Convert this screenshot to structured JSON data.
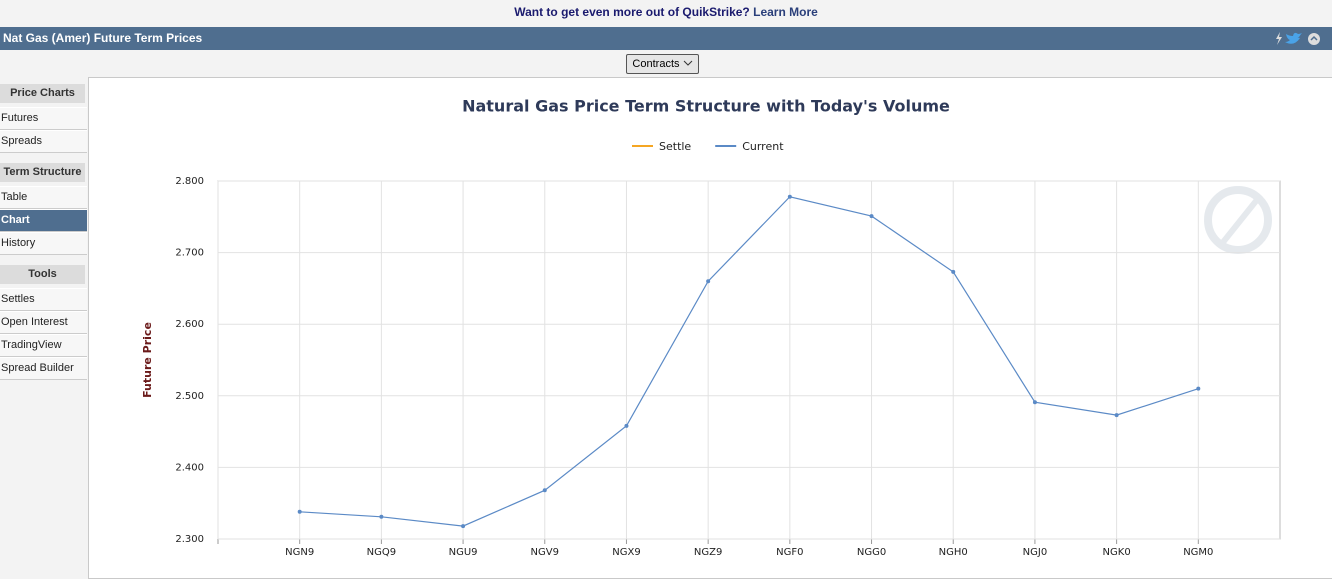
{
  "banner": {
    "text": "Want to get even more out of QuikStrike?",
    "link": "Learn More"
  },
  "header": {
    "title": "Nat Gas (Amer) Future Term Prices"
  },
  "toolbar": {
    "button": "Contracts"
  },
  "sidebar": [
    {
      "title": "Price Charts",
      "items": [
        {
          "label": "Futures"
        },
        {
          "label": "Spreads"
        }
      ]
    },
    {
      "title": "Term Structure",
      "items": [
        {
          "label": "Table"
        },
        {
          "label": "Chart",
          "active": true
        },
        {
          "label": "History"
        }
      ]
    },
    {
      "title": "Tools",
      "items": [
        {
          "label": "Settles"
        },
        {
          "label": "Open Interest"
        },
        {
          "label": "TradingView"
        },
        {
          "label": "Spread Builder"
        }
      ]
    }
  ],
  "chart_data": {
    "type": "line",
    "title": "Natural Gas Price Term Structure with Today's Volume",
    "y_label": "Future Price",
    "categories": [
      "NGN9",
      "NGQ9",
      "NGU9",
      "NGV9",
      "NGX9",
      "NGZ9",
      "NGF0",
      "NGG0",
      "NGH0",
      "NGJ0",
      "NGK0",
      "NGM0"
    ],
    "series": [
      {
        "name": "Settle",
        "color": "#f5a623",
        "values": [
          null,
          null,
          null,
          null,
          null,
          null,
          null,
          null,
          null,
          null,
          null,
          null
        ]
      },
      {
        "name": "Current",
        "color": "#5b8ac6",
        "values": [
          2.338,
          2.331,
          2.318,
          2.368,
          2.458,
          2.66,
          2.778,
          2.751,
          2.673,
          2.491,
          2.473,
          2.51
        ]
      }
    ],
    "ylim": [
      2.3,
      2.8
    ],
    "yticks": [
      {
        "value": 2.3,
        "label": "2.300"
      },
      {
        "value": 2.4,
        "label": "2.400"
      },
      {
        "value": 2.5,
        "label": "2.500"
      },
      {
        "value": 2.6,
        "label": "2.600"
      },
      {
        "value": 2.7,
        "label": "2.700"
      },
      {
        "value": 2.8,
        "label": "2.800"
      }
    ],
    "grid": true
  }
}
